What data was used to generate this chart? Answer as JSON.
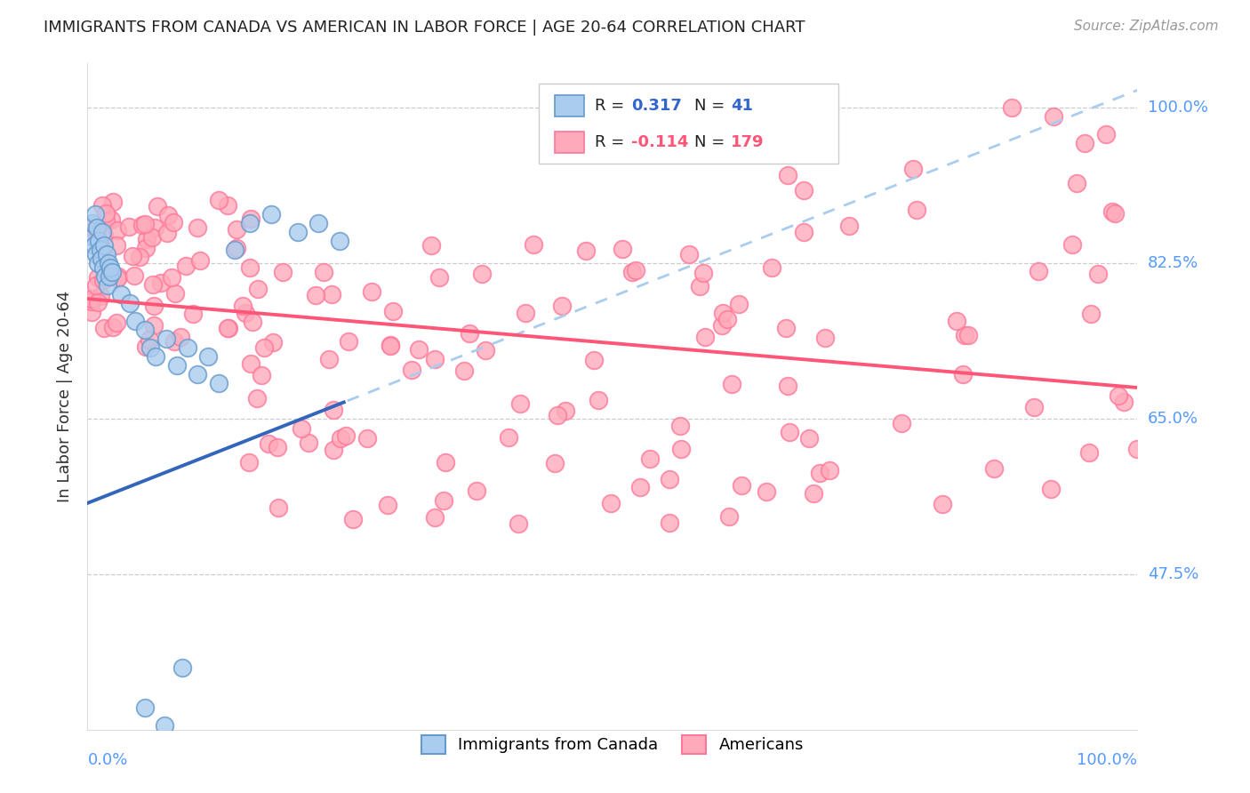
{
  "title": "IMMIGRANTS FROM CANADA VS AMERICAN IN LABOR FORCE | AGE 20-64 CORRELATION CHART",
  "source": "Source: ZipAtlas.com",
  "ylabel": "In Labor Force | Age 20-64",
  "ytick_values": [
    0.475,
    0.65,
    0.825,
    1.0
  ],
  "ytick_labels": [
    "47.5%",
    "65.0%",
    "82.5%",
    "100.0%"
  ],
  "xmin": 0.0,
  "xmax": 1.0,
  "ymin": 0.3,
  "ymax": 1.05,
  "blue_marker_face": "#AACCEE",
  "blue_marker_edge": "#6699CC",
  "pink_marker_face": "#FFAABB",
  "pink_marker_edge": "#FF7799",
  "blue_line_color": "#3366BB",
  "blue_dash_color": "#AACCEE",
  "pink_line_color": "#FF5577",
  "R_blue": 0.317,
  "N_blue": 41,
  "R_pink": -0.114,
  "N_pink": 179,
  "legend_blue_text": "Immigrants from Canada",
  "legend_pink_text": "Americans",
  "grid_color": "#CCCCCC",
  "label_color": "#5599FF",
  "title_color": "#222222",
  "source_color": "#999999",
  "ylabel_color": "#333333",
  "marker_size": 200,
  "figwidth": 14.06,
  "figheight": 8.92,
  "dpi": 100,
  "blue_trend_x0": 0.0,
  "blue_trend_y0": 0.555,
  "blue_trend_x1": 1.0,
  "blue_trend_y1": 1.02,
  "pink_trend_x0": 0.0,
  "pink_trend_y0": 0.785,
  "pink_trend_x1": 1.0,
  "pink_trend_y1": 0.685
}
